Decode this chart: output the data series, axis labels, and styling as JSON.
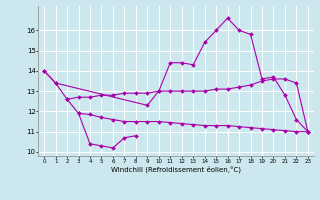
{
  "background_color": "#cce8ee",
  "grid_color": "#ffffff",
  "line_color": "#aa00aa",
  "xlabel": "Windchill (Refroidissement éolien,°C)",
  "xlim": [
    -0.5,
    23.5
  ],
  "ylim": [
    9.8,
    17.2
  ],
  "yticks": [
    10,
    11,
    12,
    13,
    14,
    15,
    16
  ],
  "xticks": [
    0,
    1,
    2,
    3,
    4,
    5,
    6,
    7,
    8,
    9,
    10,
    11,
    12,
    13,
    14,
    15,
    16,
    17,
    18,
    19,
    20,
    21,
    22,
    23
  ],
  "series": [
    {
      "x": [
        0,
        1,
        2,
        3,
        4,
        5,
        6,
        7,
        8
      ],
      "y": [
        14.0,
        13.4,
        12.6,
        11.9,
        10.4,
        10.3,
        10.2,
        10.7,
        10.8
      ]
    },
    {
      "x": [
        2,
        3,
        4,
        5,
        6,
        7,
        8,
        9,
        10,
        11,
        12,
        13,
        14,
        15,
        16,
        17,
        18,
        19,
        20,
        21,
        22,
        23
      ],
      "y": [
        12.6,
        12.7,
        12.7,
        12.8,
        12.8,
        12.9,
        12.9,
        12.9,
        13.0,
        13.0,
        13.0,
        13.0,
        13.0,
        13.1,
        13.1,
        13.2,
        13.3,
        13.5,
        13.6,
        13.6,
        13.4,
        11.0
      ]
    },
    {
      "x": [
        3,
        4,
        5,
        6,
        7,
        8,
        9,
        10,
        11,
        12,
        13,
        14,
        15,
        16,
        17,
        18,
        19,
        20,
        21,
        22,
        23
      ],
      "y": [
        11.9,
        11.85,
        11.7,
        11.6,
        11.5,
        11.5,
        11.5,
        11.5,
        11.45,
        11.4,
        11.35,
        11.3,
        11.3,
        11.3,
        11.25,
        11.2,
        11.15,
        11.1,
        11.05,
        11.0,
        11.0
      ]
    },
    {
      "x": [
        0,
        1,
        9,
        10,
        11,
        12,
        13,
        14,
        15,
        16,
        17,
        18,
        19,
        20,
        21,
        22,
        23
      ],
      "y": [
        14.0,
        13.4,
        12.3,
        13.0,
        14.4,
        14.4,
        14.3,
        15.4,
        16.0,
        16.6,
        16.0,
        15.8,
        13.6,
        13.7,
        12.8,
        11.6,
        11.0
      ]
    }
  ]
}
